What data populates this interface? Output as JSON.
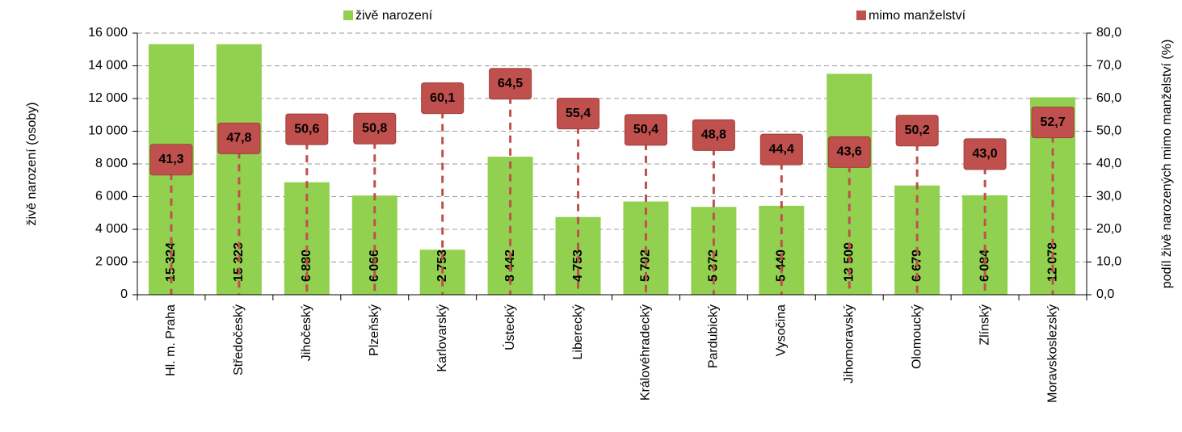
{
  "chart_data": {
    "type": "bar",
    "legend": "top",
    "grid": true,
    "y_label": "živě narození (osoby)",
    "y2_label": "podíl živě narozených mimo manželství (%)",
    "categories": [
      "Hl. m. Praha",
      "Středočeský",
      "Jihočeský",
      "Plzeňský",
      "Karlovarský",
      "Ústecký",
      "Liberecký",
      "Královéhradecký",
      "Pardubický",
      "Vysočina",
      "Jihomoravský",
      "Olomoucký",
      "Zlínský",
      "Moravskoslezský"
    ],
    "series": [
      {
        "name": "živě narození",
        "color": "#92d050",
        "values": [
          15324,
          15323,
          6880,
          6066,
          2753,
          8442,
          4753,
          5702,
          5372,
          5440,
          13509,
          6679,
          6084,
          12078
        ],
        "value_labels": [
          "15 324",
          "15 323",
          "6 880",
          "6 066",
          "2 753",
          "8 442",
          "4 753",
          "5 702",
          "5 372",
          "5 440",
          "13 509",
          "6 679",
          "6 084",
          "12 078"
        ]
      },
      {
        "name": "mimo manželství",
        "color": "#c0504d",
        "axis": "y2",
        "values": [
          41.3,
          47.8,
          50.6,
          50.8,
          60.1,
          64.5,
          55.4,
          50.4,
          48.8,
          44.4,
          43.6,
          50.2,
          43.0,
          52.7
        ],
        "value_labels": [
          "41,3",
          "47,8",
          "50,6",
          "50,8",
          "60,1",
          "64,5",
          "55,4",
          "50,4",
          "48,8",
          "44,4",
          "43,6",
          "50,2",
          "43,0",
          "52,7"
        ]
      }
    ],
    "ylim": [
      0,
      16000
    ],
    "yticks": [
      0,
      {
        "value": 2000,
        "label": "2 000"
      },
      {
        "value": 4000,
        "label": "4 000"
      },
      {
        "value": 6000,
        "label": "6 000"
      },
      {
        "value": 8000,
        "label": "8 000"
      },
      {
        "value": 10000,
        "label": "10 000"
      },
      {
        "value": 12000,
        "label": "12 000"
      },
      {
        "value": 14000,
        "label": "14 000"
      },
      {
        "value": 16000,
        "label": "16 000"
      }
    ],
    "y2lim": [
      0,
      80
    ],
    "y2ticks": [
      {
        "value": 0,
        "label": "0,0"
      },
      {
        "value": 10,
        "label": "10,0"
      },
      {
        "value": 20,
        "label": "20,0"
      },
      {
        "value": 30,
        "label": "30,0"
      },
      {
        "value": 40,
        "label": "40,0"
      },
      {
        "value": 50,
        "label": "50,0"
      },
      {
        "value": 60,
        "label": "60,0"
      },
      {
        "value": 70,
        "label": "70,0"
      },
      {
        "value": 80,
        "label": "80,0"
      }
    ]
  }
}
